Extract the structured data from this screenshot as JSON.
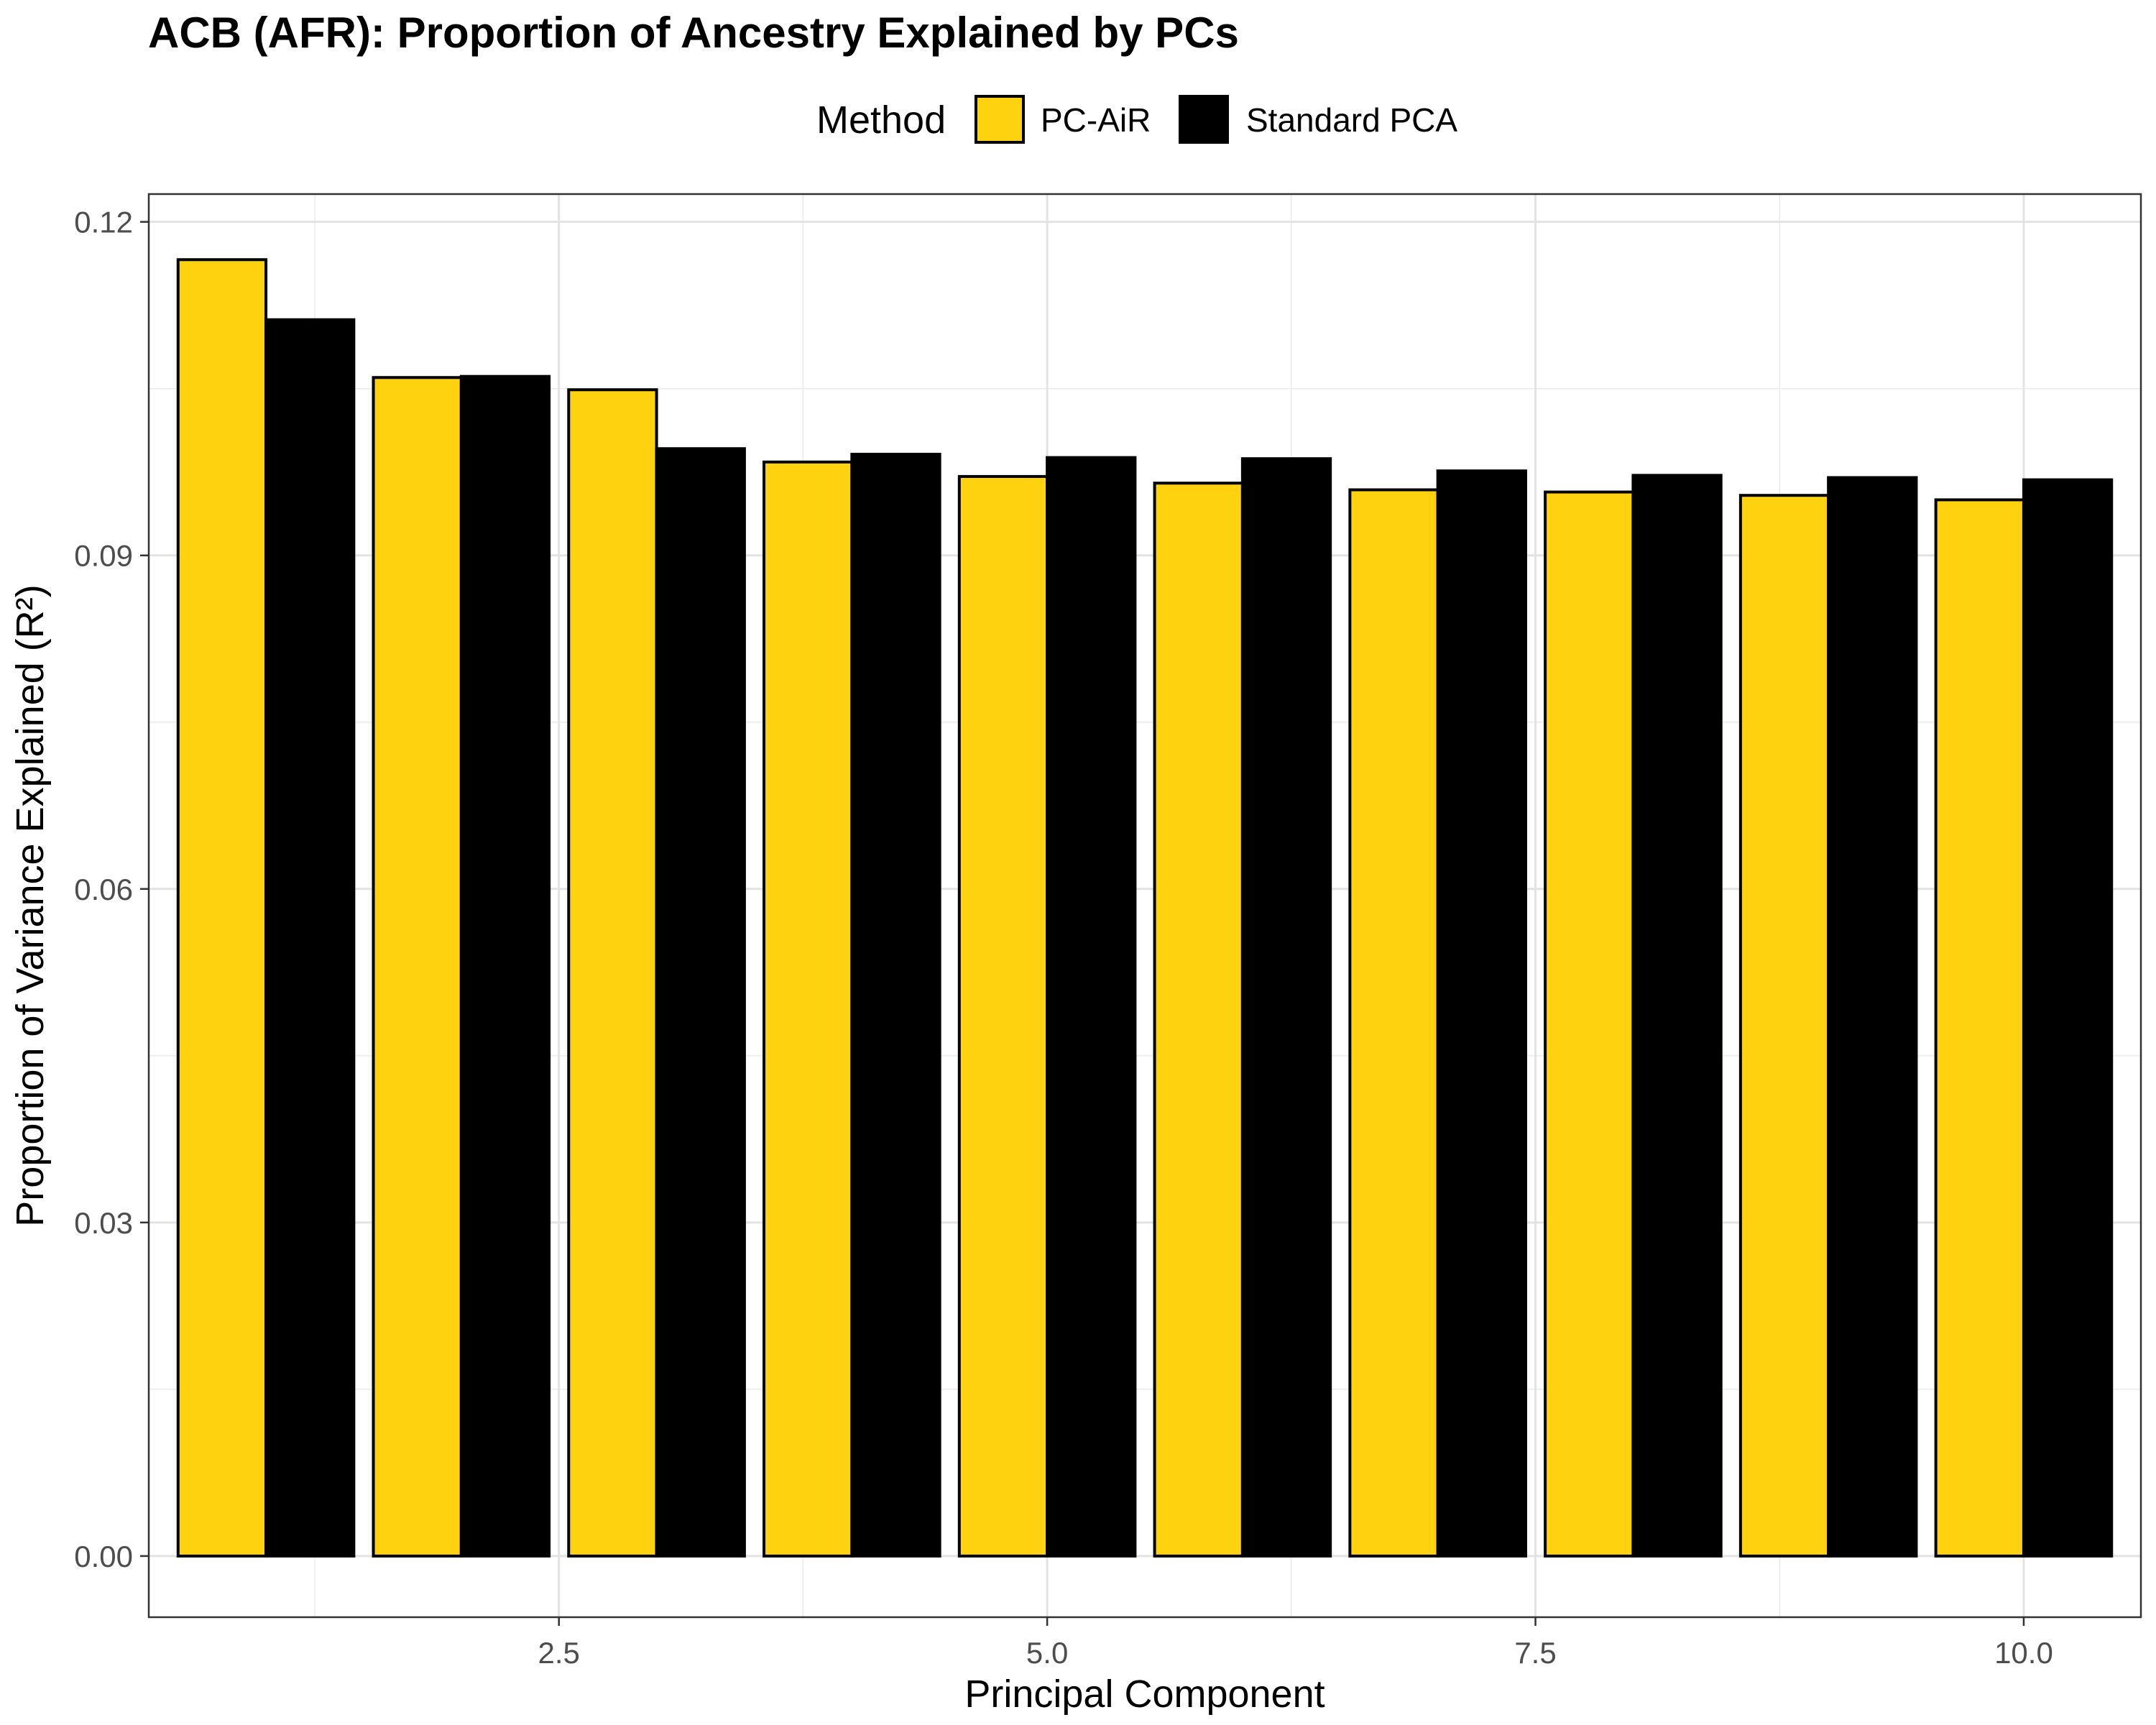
{
  "chart_data": {
    "type": "bar",
    "title": "ACB (AFR): Proportion of Ancestry Explained by PCs",
    "xlabel": "Principal Component",
    "ylabel": "Proportion of Variance Explained (R²)",
    "x": [
      1,
      2,
      3,
      4,
      5,
      6,
      7,
      8,
      9,
      10
    ],
    "xlim": [
      0.4,
      10.6
    ],
    "ylim": [
      -0.0055,
      0.1225
    ],
    "x_ticks": [
      2.5,
      5.0,
      7.5,
      10.0
    ],
    "x_tick_labels": [
      "2.5",
      "5.0",
      "7.5",
      "10.0"
    ],
    "y_ticks": [
      0.0,
      0.03,
      0.06,
      0.09,
      0.12
    ],
    "y_tick_labels": [
      "0.00",
      "0.03",
      "0.06",
      "0.09",
      "0.12"
    ],
    "grid": true,
    "legend": {
      "title": "Method",
      "position": "top"
    },
    "series": [
      {
        "name": "PC-AiR",
        "color": "#FFD20F",
        "values": [
          0.1166,
          0.106,
          0.1049,
          0.0984,
          0.0971,
          0.0965,
          0.0959,
          0.0957,
          0.0954,
          0.095
        ]
      },
      {
        "name": "Standard PCA",
        "color": "#000000",
        "values": [
          0.1112,
          0.1061,
          0.0996,
          0.0991,
          0.0988,
          0.0987,
          0.0976,
          0.0972,
          0.097,
          0.0968
        ]
      }
    ]
  }
}
